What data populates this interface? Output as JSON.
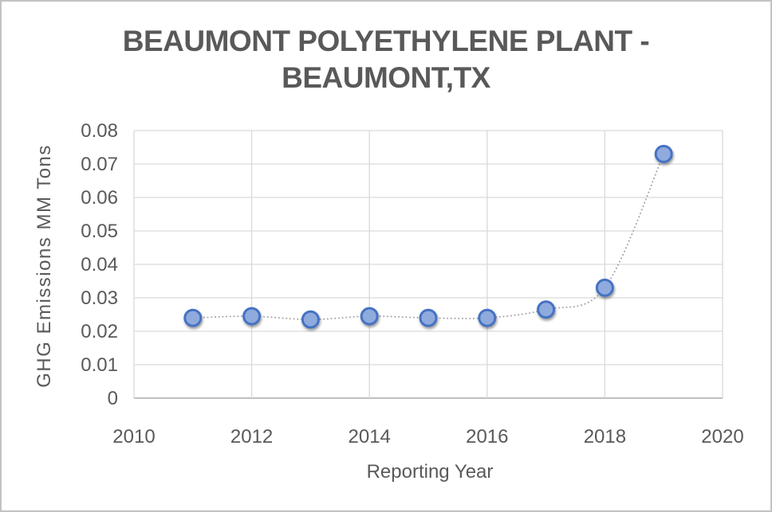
{
  "frame": {
    "background": "#FFFFFF",
    "border_color": "#C2C2C2"
  },
  "header": {
    "title_lines": [
      "BEAUMONT POLYETHYLENE PLANT -",
      "BEAUMONT,TX"
    ],
    "title_color": "#595959"
  },
  "chart_data": {
    "type": "scatter",
    "title": "BEAUMONT POLYETHYLENE PLANT - BEAUMONT,TX",
    "xlabel": "Reporting Year",
    "ylabel": "GHG Emissions MM Tons",
    "x": [
      2011,
      2012,
      2013,
      2014,
      2015,
      2016,
      2017,
      2018,
      2019
    ],
    "values": [
      0.024,
      0.0245,
      0.0235,
      0.0245,
      0.024,
      0.024,
      0.0265,
      0.033,
      0.073
    ],
    "xlim": [
      2010,
      2020
    ],
    "ylim": [
      0,
      0.08
    ],
    "xtick_labels": [
      "2010",
      "2012",
      "2014",
      "2016",
      "2018",
      "2020"
    ],
    "ytick_labels": [
      "0",
      "0.01",
      "0.02",
      "0.03",
      "0.04",
      "0.05",
      "0.06",
      "0.07",
      "0.08"
    ],
    "grid": true,
    "legend": false,
    "line": {
      "style": "dotted",
      "smooth": true,
      "color": "#A6A6A6"
    },
    "marker": {
      "shape": "circle",
      "fill": "#8FAADC",
      "stroke": "#4472C4"
    },
    "gridline_color": "#D9D9D9",
    "axis_line_color": "#BFBFBF",
    "tick_color": "#595959"
  }
}
